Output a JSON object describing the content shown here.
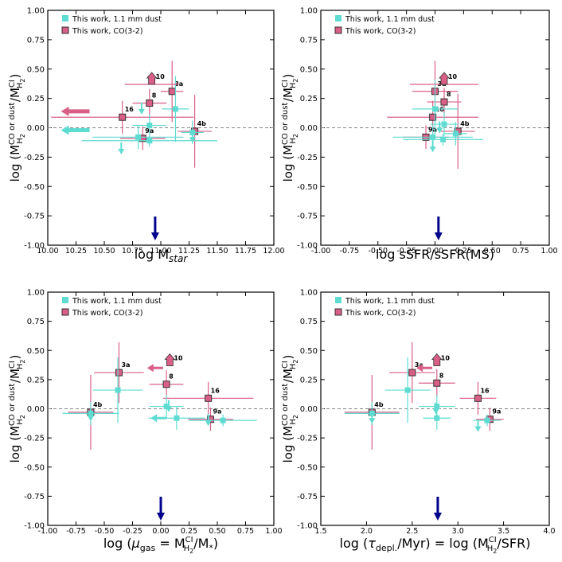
{
  "colors": {
    "co": "#d95f86",
    "dust": "#5fdcd2",
    "arrow": "#00008b",
    "line": "#888888"
  },
  "legend": {
    "dust": "This  work, 1.1 mm dust",
    "co": "This work, CO(3-2)"
  },
  "chart_data": [
    {
      "type": "scatter",
      "xlabel": "log M_star",
      "ylabel": "log (M_H2^CO or dust / M_H2^CI)",
      "xlim": [
        10.0,
        12.0
      ],
      "ylim": [
        -1.0,
        1.0
      ],
      "xticks": [
        "10.00",
        "10.25",
        "10.50",
        "10.75",
        "11.00",
        "11.25",
        "11.50",
        "11.75",
        "12.00"
      ],
      "yticks": [
        "1.00",
        "0.75",
        "0.50",
        "0.25",
        "0.00",
        "-0.25",
        "-0.50",
        "-0.75",
        "-1.00"
      ],
      "marker_value": 10.95,
      "series": [
        {
          "name": "This work, CO(3-2)",
          "points": [
            {
              "label": "3a",
              "x": 11.1,
              "y": 0.31,
              "xerr": 0.1,
              "yerr": 0.26
            },
            {
              "label": "8",
              "x": 10.9,
              "y": 0.21,
              "xerr": 0.15,
              "yerr": 0.12
            },
            {
              "label": "16",
              "x": 10.66,
              "y": 0.09,
              "xerr": 0.63,
              "yerr": 0.14
            },
            {
              "label": "9a",
              "x": 10.84,
              "y": -0.09,
              "xerr": 0.2,
              "yerr": 0.1
            },
            {
              "label": "4b",
              "x": 11.3,
              "y": -0.03,
              "xerr": 0.15,
              "yerr": 0.31
            }
          ]
        },
        {
          "name": "This  work, 1.1 mm dust",
          "points": [
            {
              "x": 11.13,
              "y": 0.16,
              "xerr": 0.12,
              "yerr": 0.28
            },
            {
              "x": 10.9,
              "y": 0.02,
              "xerr": 0.15,
              "yerr": 0.1
            },
            {
              "x": 10.8,
              "y": -0.08,
              "xerr": 0.4,
              "yerr": 0.1
            },
            {
              "x": 10.9,
              "y": -0.11,
              "xerr": 0.6,
              "yerr": 0.05
            },
            {
              "x": 11.28,
              "y": -0.04,
              "xerr": 0.1,
              "yerr": 0.1
            }
          ]
        }
      ],
      "limits": [
        {
          "label": "10",
          "x": 10.92,
          "y": 0.41,
          "xerr": 0.24,
          "dir": "up",
          "color": "co"
        },
        {
          "x": 10.83,
          "y": 0.16,
          "dir": "down",
          "color": "dust"
        },
        {
          "x": 10.65,
          "y": -0.18,
          "dir": "down",
          "color": "dust"
        },
        {
          "x": 10.37,
          "y": 0.14,
          "dir": "left",
          "color": "co"
        },
        {
          "x": 10.37,
          "y": -0.02,
          "dir": "left",
          "color": "dust"
        },
        {
          "x": 11.28,
          "y": -0.08,
          "dir": "down",
          "color": "dust"
        }
      ]
    },
    {
      "type": "scatter",
      "xlabel": "log sSFR/sSFR(MS)",
      "ylabel": "log (M_H2^CO or dust / M_H2^CI)",
      "xlim": [
        -1.0,
        1.0
      ],
      "ylim": [
        -1.0,
        1.0
      ],
      "xticks": [
        "-1.00",
        "-0.75",
        "-0.50",
        "-0.25",
        "0.00",
        "0.25",
        "0.50",
        "0.75",
        "1.00"
      ],
      "yticks": [
        "1.00",
        "0.75",
        "0.50",
        "0.25",
        "0.00",
        "-0.25",
        "-0.50",
        "-0.75",
        "-1.00"
      ],
      "marker_value": 0.03,
      "series": [
        {
          "name": "This work, CO(3-2)",
          "points": [
            {
              "label": "3a",
              "x": 0.0,
              "y": 0.31,
              "xerr": 0.2,
              "yerr": 0.26
            },
            {
              "label": "8",
              "x": 0.08,
              "y": 0.22,
              "xerr": 0.15,
              "yerr": 0.12
            },
            {
              "label": "16",
              "x": -0.02,
              "y": 0.09,
              "xerr": 0.4,
              "yerr": 0.14
            },
            {
              "label": "9a",
              "x": -0.08,
              "y": -0.08,
              "xerr": 0.2,
              "yerr": 0.1
            },
            {
              "label": "4b",
              "x": 0.2,
              "y": -0.03,
              "xerr": 0.15,
              "yerr": 0.32
            }
          ]
        },
        {
          "name": "This  work, 1.1 mm dust",
          "points": [
            {
              "x": 0.0,
              "y": 0.16,
              "xerr": 0.2,
              "yerr": 0.25
            },
            {
              "x": 0.08,
              "y": 0.03,
              "xerr": 0.12,
              "yerr": 0.1
            },
            {
              "x": -0.02,
              "y": -0.08,
              "xerr": 0.35,
              "yerr": 0.1
            },
            {
              "x": 0.07,
              "y": -0.1,
              "xerr": 0.35,
              "yerr": 0.05
            },
            {
              "x": 0.18,
              "y": -0.05,
              "xerr": 0.1,
              "yerr": 0.1
            }
          ]
        }
      ],
      "limits": [
        {
          "label": "10",
          "x": 0.08,
          "y": 0.41,
          "xerr": 0.3,
          "dir": "up",
          "color": "co"
        },
        {
          "x": -0.02,
          "y": -0.16,
          "dir": "down",
          "color": "dust"
        },
        {
          "x": 0.04,
          "y": 0.0,
          "dir": "down",
          "color": "dust"
        }
      ]
    },
    {
      "type": "scatter",
      "xlabel": "log (μgas = M_H2^CI/M*)",
      "ylabel": "log (M_H2^CO or dust / M_H2^CI)",
      "xlim": [
        -1.0,
        1.0
      ],
      "ylim": [
        -1.0,
        1.0
      ],
      "xticks": [
        "-1.00",
        "-0.75",
        "-0.50",
        "-0.25",
        "0.00",
        "0.25",
        "0.50",
        "0.75",
        "1.00"
      ],
      "yticks": [
        "1.00",
        "0.75",
        "0.50",
        "0.25",
        "0.00",
        "-0.25",
        "-0.50",
        "-0.75",
        "-1.00"
      ],
      "marker_value": 0.0,
      "series": [
        {
          "name": "This work, CO(3-2)",
          "points": [
            {
              "label": "3a",
              "x": -0.37,
              "y": 0.31,
              "xerr": 0.22,
              "yerr": 0.26
            },
            {
              "label": "8",
              "x": 0.05,
              "y": 0.21,
              "xerr": 0.15,
              "yerr": 0.12
            },
            {
              "label": "16",
              "x": 0.42,
              "y": 0.09,
              "xerr": 0.4,
              "yerr": 0.14
            },
            {
              "label": "9a",
              "x": 0.44,
              "y": -0.09,
              "xerr": 0.2,
              "yerr": 0.1
            },
            {
              "label": "4b",
              "x": -0.62,
              "y": -0.03,
              "xerr": 0.2,
              "yerr": 0.32
            }
          ]
        },
        {
          "name": "This  work, 1.1 mm dust",
          "points": [
            {
              "x": -0.38,
              "y": 0.16,
              "xerr": 0.22,
              "yerr": 0.28
            },
            {
              "x": 0.05,
              "y": 0.02,
              "xerr": 0.15,
              "yerr": 0.1
            },
            {
              "x": 0.14,
              "y": -0.08,
              "xerr": 0.25,
              "yerr": 0.1
            },
            {
              "x": 0.55,
              "y": -0.1,
              "xerr": 0.3,
              "yerr": 0.05
            },
            {
              "x": -0.62,
              "y": -0.04,
              "xerr": 0.25,
              "yerr": 0.1
            }
          ]
        }
      ],
      "limits": [
        {
          "label": "10",
          "x": 0.08,
          "y": 0.41,
          "dir": "up",
          "color": "co"
        },
        {
          "x": 0.02,
          "y": 0.35,
          "dir": "left",
          "color": "co"
        },
        {
          "x": 0.05,
          "y": -0.08,
          "dir": "left",
          "color": "dust"
        },
        {
          "x": 0.07,
          "y": 0.02,
          "dir": "down",
          "color": "dust"
        },
        {
          "x": 0.42,
          "y": -0.1,
          "dir": "down",
          "color": "dust"
        },
        {
          "x": -0.62,
          "y": -0.06,
          "dir": "down",
          "color": "dust"
        }
      ]
    },
    {
      "type": "scatter",
      "xlabel": "log (τdepl./Myr)  = log (M_H2^CI/SFR)",
      "ylabel": "log (M_H2^CO or dust / M_H2^CI)",
      "xlim": [
        1.5,
        4.0
      ],
      "ylim": [
        -1.0,
        1.0
      ],
      "xticks": [
        "1.5",
        "2.0",
        "2.5",
        "3.0",
        "3.5",
        "4.0"
      ],
      "yticks": [
        "1.00",
        "0.75",
        "0.50",
        "0.25",
        "0.00",
        "-0.25",
        "-0.50",
        "-0.75",
        "-1.00"
      ],
      "marker_value": 2.78,
      "series": [
        {
          "name": "This work, CO(3-2)",
          "points": [
            {
              "label": "3a",
              "x": 2.5,
              "y": 0.31,
              "xerr": 0.25,
              "yerr": 0.26
            },
            {
              "label": "8",
              "x": 2.77,
              "y": 0.22,
              "xerr": 0.2,
              "yerr": 0.12
            },
            {
              "label": "16",
              "x": 3.22,
              "y": 0.09,
              "xerr": 0.2,
              "yerr": 0.14
            },
            {
              "label": "9a",
              "x": 3.35,
              "y": -0.09,
              "xerr": 0.15,
              "yerr": 0.1
            },
            {
              "label": "4b",
              "x": 2.06,
              "y": -0.03,
              "xerr": 0.3,
              "yerr": 0.32
            }
          ]
        },
        {
          "name": "This  work, 1.1 mm dust",
          "points": [
            {
              "x": 2.45,
              "y": 0.16,
              "xerr": 0.25,
              "yerr": 0.28
            },
            {
              "x": 2.77,
              "y": 0.02,
              "xerr": 0.2,
              "yerr": 0.1
            },
            {
              "x": 2.77,
              "y": -0.08,
              "xerr": 0.15,
              "yerr": 0.1
            },
            {
              "x": 3.32,
              "y": -0.1,
              "xerr": 0.15,
              "yerr": 0.05
            },
            {
              "x": 2.06,
              "y": -0.04,
              "xerr": 0.3,
              "yerr": 0.1
            }
          ]
        }
      ],
      "limits": [
        {
          "label": "10",
          "x": 2.77,
          "y": 0.41,
          "dir": "up",
          "color": "co"
        },
        {
          "x": 2.72,
          "y": 0.35,
          "dir": "left",
          "color": "co"
        },
        {
          "x": 3.22,
          "y": -0.15,
          "dir": "down",
          "color": "dust"
        },
        {
          "x": 2.76,
          "y": 0.0,
          "dir": "down",
          "color": "dust"
        },
        {
          "x": 2.06,
          "y": -0.08,
          "dir": "down",
          "color": "dust"
        }
      ]
    }
  ]
}
